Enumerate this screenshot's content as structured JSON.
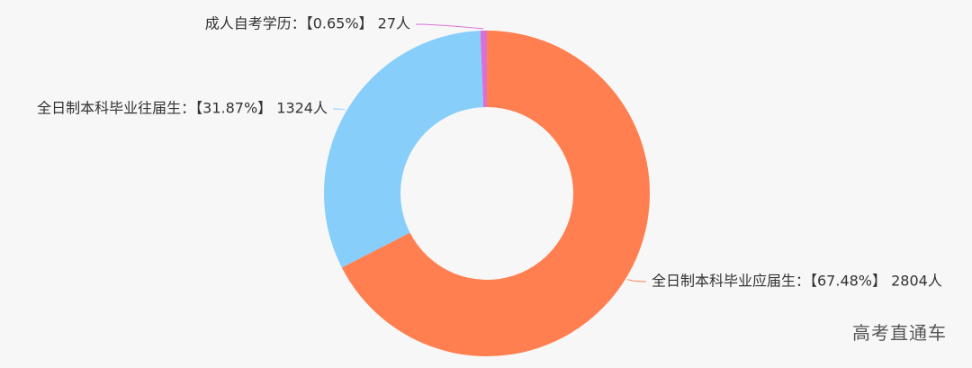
{
  "chart_data": {
    "type": "pie",
    "variant": "donut",
    "slices": [
      {
        "label": "全日制本科毕业应届生：【67.48%】 2804人",
        "name": "全日制本科毕业应届生",
        "percent": 67.48,
        "value": 2804,
        "color": "#ff7f50"
      },
      {
        "label": "全日制本科毕业往届生：【31.87%】 1324人",
        "name": "全日制本科毕业往届生",
        "percent": 31.87,
        "value": 1324,
        "color": "#87cefa"
      },
      {
        "label": "成人自考学历：【0.65%】 27人",
        "name": "成人自考学历",
        "percent": 0.65,
        "value": 27,
        "color": "#da70d6"
      }
    ]
  },
  "watermark": "高考直通车"
}
